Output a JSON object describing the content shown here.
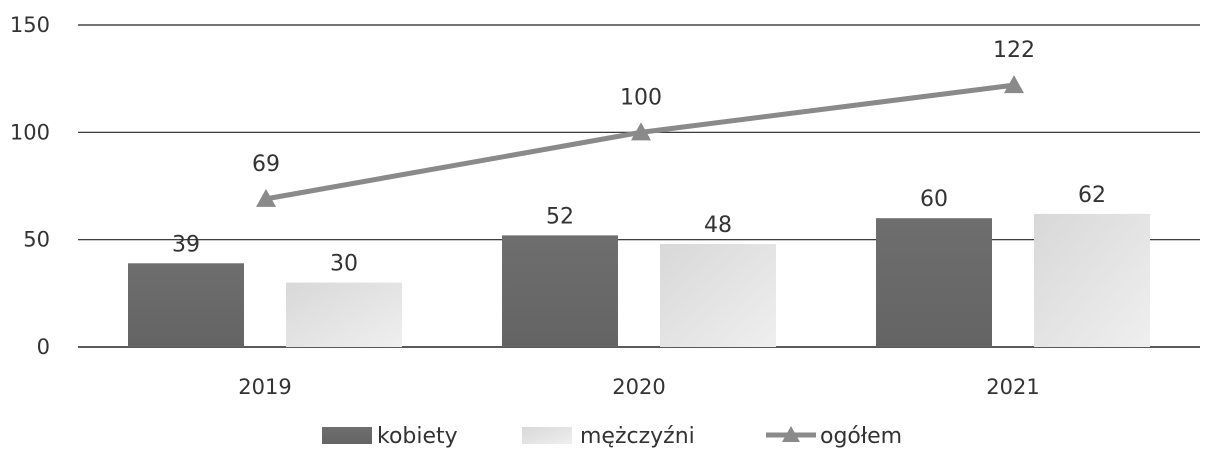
{
  "chart_data": {
    "type": "bar",
    "categories": [
      "2019",
      "2020",
      "2021"
    ],
    "series": [
      {
        "name": "kobiety",
        "kind": "bar",
        "values": [
          39,
          52,
          60
        ],
        "color": "#6b6b6b"
      },
      {
        "name": "mężczyźni",
        "kind": "bar",
        "values": [
          30,
          48,
          62
        ],
        "color": "#dcdcdc"
      },
      {
        "name": "ogółem",
        "kind": "line",
        "marker": "triangle",
        "values": [
          69,
          100,
          122
        ],
        "color": "#8a8a8a"
      }
    ],
    "ylim": [
      0,
      150
    ],
    "yticks": [
      "0",
      "50",
      "100",
      "150"
    ],
    "grid": true,
    "legend_position": "bottom",
    "title": "",
    "xlabel": "",
    "ylabel": ""
  }
}
